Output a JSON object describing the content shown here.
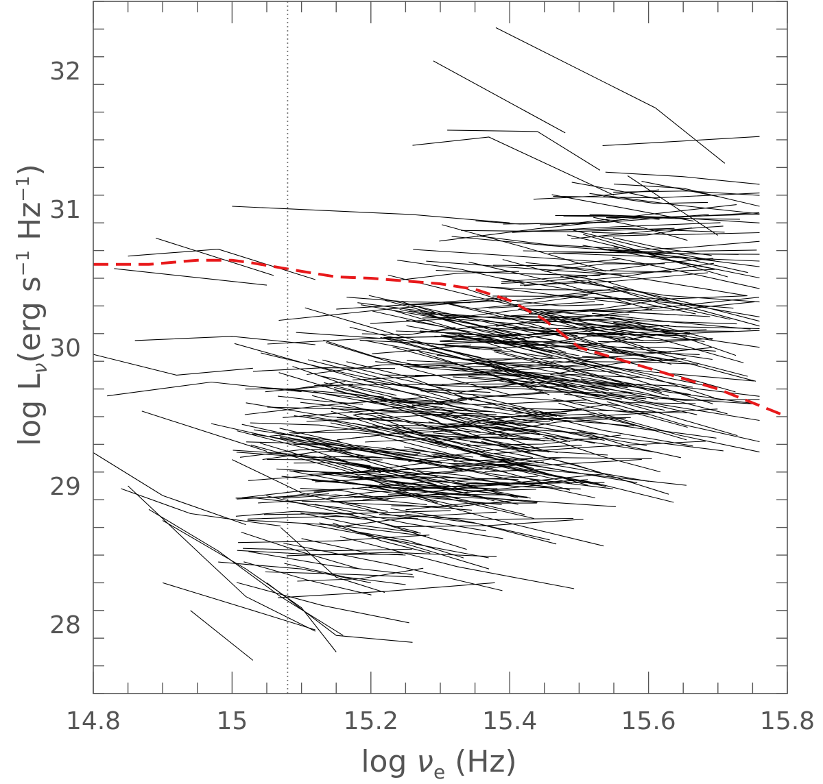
{
  "chart_data": {
    "type": "line",
    "title": "",
    "xlabel": {
      "pre": "log ",
      "sym": "ν",
      "sub": "e",
      "post": " (Hz)"
    },
    "ylabel": {
      "pre": "log L",
      "sub": "ν",
      "mid": "(erg s",
      "sup1": "−1",
      "mid2": " Hz",
      "sup2": "−1",
      "post": ")"
    },
    "xlim": [
      14.8,
      15.8
    ],
    "ylim": [
      27.5,
      32.5
    ],
    "xticks": [
      {
        "v": 14.8,
        "label": "14.8"
      },
      {
        "v": 15.0,
        "label": "15"
      },
      {
        "v": 15.2,
        "label": "15.2"
      },
      {
        "v": 15.4,
        "label": "15.4"
      },
      {
        "v": 15.6,
        "label": "15.6"
      },
      {
        "v": 15.8,
        "label": "15.8"
      }
    ],
    "yticks": [
      {
        "v": 28,
        "label": "28"
      },
      {
        "v": 29,
        "label": "29"
      },
      {
        "v": 30,
        "label": "30"
      },
      {
        "v": 31,
        "label": "31"
      },
      {
        "v": 32,
        "label": "32"
      }
    ],
    "x_minor_step": 0.05,
    "y_minor_step": 0.2,
    "vline": {
      "x": 15.08,
      "style": "dotted",
      "color": "#777777"
    },
    "reference_curve": {
      "color": "#e8191b",
      "style": "dashed",
      "x": [
        14.8,
        14.88,
        14.95,
        15.0,
        15.03,
        15.1,
        15.15,
        15.2,
        15.3,
        15.35,
        15.4,
        15.45,
        15.5,
        15.6,
        15.7,
        15.8
      ],
      "y": [
        30.6,
        30.6,
        30.63,
        30.63,
        30.61,
        30.55,
        30.51,
        30.5,
        30.46,
        30.42,
        30.34,
        30.2,
        30.0,
        29.85,
        29.7,
        29.5
      ]
    },
    "spectra_color": "#000000",
    "spectra_random_fill_count": 420,
    "spectra": [
      [
        [
          15.38,
          32.31
        ],
        [
          15.61,
          31.73
        ],
        [
          15.71,
          31.33
        ]
      ],
      [
        [
          15.29,
          32.07
        ],
        [
          15.48,
          31.55
        ]
      ],
      [
        [
          15.26,
          31.46
        ],
        [
          15.37,
          31.52
        ],
        [
          15.55,
          31.1
        ]
      ],
      [
        [
          15.31,
          31.57
        ],
        [
          15.44,
          31.56
        ],
        [
          15.53,
          31.28
        ]
      ],
      [
        [
          15.57,
          31.24
        ],
        [
          15.7,
          30.81
        ]
      ],
      [
        [
          15.55,
          31.18
        ],
        [
          15.65,
          31.15
        ],
        [
          15.76,
          31.02
        ]
      ],
      [
        [
          15.59,
          31.2
        ],
        [
          15.7,
          31.09
        ]
      ],
      [
        [
          15.0,
          31.02
        ],
        [
          15.26,
          30.96
        ],
        [
          15.4,
          30.9
        ]
      ],
      [
        [
          14.85,
          30.66
        ],
        [
          14.98,
          30.71
        ],
        [
          15.12,
          30.49
        ]
      ],
      [
        [
          14.8,
          29.95
        ],
        [
          14.92,
          29.8
        ],
        [
          15.03,
          29.85
        ]
      ],
      [
        [
          14.82,
          29.65
        ],
        [
          14.97,
          29.75
        ],
        [
          15.1,
          29.68
        ]
      ],
      [
        [
          14.83,
          30.57
        ],
        [
          15.05,
          30.45
        ]
      ],
      [
        [
          14.86,
          30.05
        ],
        [
          15.0,
          30.08
        ],
        [
          15.12,
          30.02
        ]
      ],
      [
        [
          14.89,
          30.79
        ],
        [
          15.06,
          30.52
        ]
      ],
      [
        [
          14.87,
          29.54
        ],
        [
          15.05,
          29.25
        ]
      ],
      [
        [
          14.8,
          29.24
        ],
        [
          14.9,
          28.93
        ],
        [
          15.02,
          28.72
        ]
      ],
      [
        [
          14.84,
          28.98
        ],
        [
          14.94,
          28.8
        ],
        [
          15.07,
          28.71
        ]
      ],
      [
        [
          14.85,
          29.0
        ],
        [
          14.96,
          28.48
        ],
        [
          15.02,
          28.2
        ],
        [
          15.12,
          27.95
        ]
      ],
      [
        [
          14.88,
          28.83
        ],
        [
          14.98,
          28.53
        ],
        [
          15.07,
          28.2
        ],
        [
          15.16,
          27.92
        ]
      ],
      [
        [
          14.9,
          28.75
        ],
        [
          15.02,
          28.4
        ],
        [
          15.1,
          28.12
        ],
        [
          15.15,
          27.8
        ]
      ],
      [
        [
          14.9,
          28.3
        ],
        [
          15.03,
          28.1
        ],
        [
          15.12,
          27.96
        ]
      ],
      [
        [
          14.94,
          28.1
        ],
        [
          15.03,
          27.74
        ]
      ],
      [
        [
          14.98,
          28.45
        ],
        [
          15.1,
          28.4
        ],
        [
          15.2,
          28.3
        ]
      ],
      [
        [
          15.05,
          28.3
        ],
        [
          15.15,
          27.92
        ],
        [
          15.26,
          27.87
        ]
      ],
      [
        [
          15.07,
          28.7
        ],
        [
          15.15,
          28.34
        ],
        [
          15.22,
          28.23
        ]
      ],
      [
        [
          15.1,
          28.62
        ],
        [
          15.2,
          28.51
        ],
        [
          15.25,
          28.5
        ]
      ],
      [
        [
          15.0,
          29.19
        ],
        [
          15.1,
          28.95
        ],
        [
          15.21,
          28.81
        ]
      ],
      [
        [
          15.02,
          29.6
        ],
        [
          15.14,
          29.5
        ],
        [
          15.24,
          29.47
        ]
      ],
      [
        [
          15.04,
          29.31
        ],
        [
          15.18,
          29.1
        ],
        [
          15.28,
          29.05
        ]
      ],
      [
        [
          14.97,
          29.45
        ],
        [
          15.12,
          29.28
        ],
        [
          15.26,
          29.12
        ]
      ],
      [
        [
          15.1,
          29.35
        ],
        [
          15.2,
          29.17
        ],
        [
          15.34,
          28.96
        ]
      ]
    ]
  }
}
